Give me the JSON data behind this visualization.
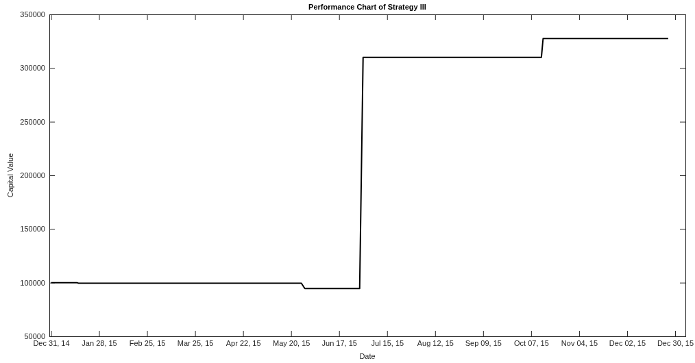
{
  "chart_data": {
    "type": "line",
    "title": "Performance Chart of Strategy III",
    "xlabel": "Date",
    "ylabel": "Capital Value",
    "x": [
      "2014-12-31",
      "2015-01-15",
      "2015-01-16",
      "2015-05-26",
      "2015-05-28",
      "2015-06-29",
      "2015-07-01",
      "2015-10-13",
      "2015-10-14",
      "2015-12-26"
    ],
    "series": [
      {
        "color": "#000000",
        "values": [
          100000,
          100000,
          99500,
          99500,
          94500,
          94500,
          310000,
          310000,
          327500,
          327500
        ]
      }
    ],
    "xlim": [
      "2014-12-30",
      "2016-01-05"
    ],
    "xticks": [
      {
        "value": "2014-12-31",
        "label": "Dec 31, 14"
      },
      {
        "value": "2015-01-28",
        "label": "Jan 28, 15"
      },
      {
        "value": "2015-02-25",
        "label": "Feb 25, 15"
      },
      {
        "value": "2015-03-25",
        "label": "Mar 25, 15"
      },
      {
        "value": "2015-04-22",
        "label": "Apr 22, 15"
      },
      {
        "value": "2015-05-20",
        "label": "May 20, 15"
      },
      {
        "value": "2015-06-17",
        "label": "Jun 17, 15"
      },
      {
        "value": "2015-07-15",
        "label": "Jul 15, 15"
      },
      {
        "value": "2015-08-12",
        "label": "Aug 12, 15"
      },
      {
        "value": "2015-09-09",
        "label": "Sep 09, 15"
      },
      {
        "value": "2015-10-07",
        "label": "Oct 07, 15"
      },
      {
        "value": "2015-11-04",
        "label": "Nov 04, 15"
      },
      {
        "value": "2015-12-02",
        "label": "Dec 02, 15"
      },
      {
        "value": "2015-12-30",
        "label": "Dec 30, 15"
      }
    ],
    "ylim": [
      50000,
      350000
    ],
    "yticks": [
      50000,
      100000,
      150000,
      200000,
      250000,
      300000,
      350000
    ],
    "grid": false,
    "marker": "none",
    "line_style": "solid"
  }
}
